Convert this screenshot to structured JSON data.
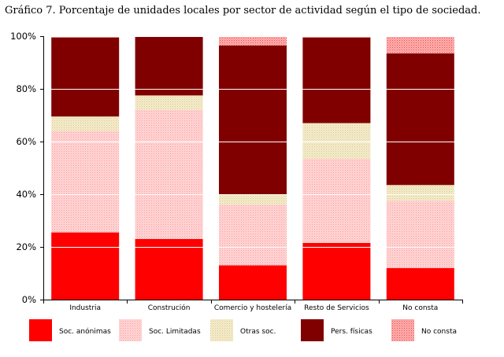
{
  "chart_data": {
    "type": "bar",
    "stacked": "percent",
    "title": "Gráfico 7. Porcentaje de unidades locales por sector de actividad según el tipo de sociedad.",
    "xlabel": "",
    "ylabel": "",
    "ylim": [
      0,
      100
    ],
    "yticks": [
      "0%",
      "20%",
      "40%",
      "60%",
      "80%",
      "100%"
    ],
    "grid": true,
    "legend_position": "bottom",
    "categories": [
      "Industria",
      "Construción",
      "Comercio y hostelería",
      "Resto de Servicios",
      "No consta"
    ],
    "series": [
      {
        "name": "Soc. anónimas",
        "color": "#ff0000",
        "pattern": "solid",
        "values": [
          25.5,
          23,
          13,
          21.5,
          12
        ]
      },
      {
        "name": "Soc. Limitadas",
        "color": "#ffc0c0",
        "pattern": "dots",
        "values": [
          38.5,
          49,
          23,
          32,
          25.5
        ]
      },
      {
        "name": "Otras soc.",
        "color": "#ece4b4",
        "pattern": "dots",
        "values": [
          5.5,
          5.5,
          4,
          13.5,
          6
        ]
      },
      {
        "name": "Pers. físicas",
        "color": "#800000",
        "pattern": "solid",
        "values": [
          30,
          22.5,
          56.5,
          32.5,
          50
        ]
      },
      {
        "name": "No consta",
        "color": "#ff9090",
        "pattern": "dots",
        "values": [
          0.5,
          0,
          3.5,
          0.5,
          6.5
        ]
      }
    ]
  }
}
